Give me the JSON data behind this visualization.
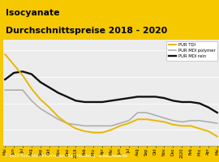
{
  "title_line1": "Isocyanate",
  "title_line2": "Durchschnittspreise 2018 - 2020",
  "title_bg": "#f5c800",
  "footer": "© 2020 Kunststoff Information, Bad Homburg - www.kiweb.de",
  "footer_bg": "#6e6e6e",
  "plot_bg": "#ececec",
  "legend": [
    "PUR TDI",
    "PUR MDI polymer",
    "PUR MDI rein"
  ],
  "legend_colors": [
    "#e6b800",
    "#aaaaaa",
    "#111111"
  ],
  "x_labels": [
    "Mai",
    "Jun",
    "Jul",
    "Aug",
    "Sep",
    "Okt",
    "Nov",
    "Dez",
    "2019",
    "Feb",
    "Mrz",
    "Apr",
    "Mai",
    "Jun",
    "Jul",
    "Aug",
    "Sep",
    "Okt",
    "Nov",
    "Dez",
    "2020",
    "Feb",
    "Mrz",
    "Apr",
    "Mai"
  ],
  "tdi": [
    97,
    89,
    81,
    71,
    63,
    57,
    50,
    45,
    41,
    39,
    38,
    38,
    40,
    43,
    45,
    48,
    48,
    47,
    46,
    44,
    43,
    43,
    41,
    39,
    35
  ],
  "mdi_polymer": [
    70,
    70,
    70,
    62,
    56,
    52,
    48,
    45,
    44,
    43,
    43,
    43,
    43,
    45,
    47,
    53,
    53,
    51,
    49,
    47,
    46,
    47,
    47,
    46,
    45
  ],
  "mdi_rein": [
    78,
    83,
    84,
    82,
    76,
    72,
    68,
    65,
    62,
    61,
    61,
    61,
    62,
    63,
    64,
    65,
    65,
    65,
    64,
    62,
    61,
    61,
    60,
    57,
    53
  ]
}
